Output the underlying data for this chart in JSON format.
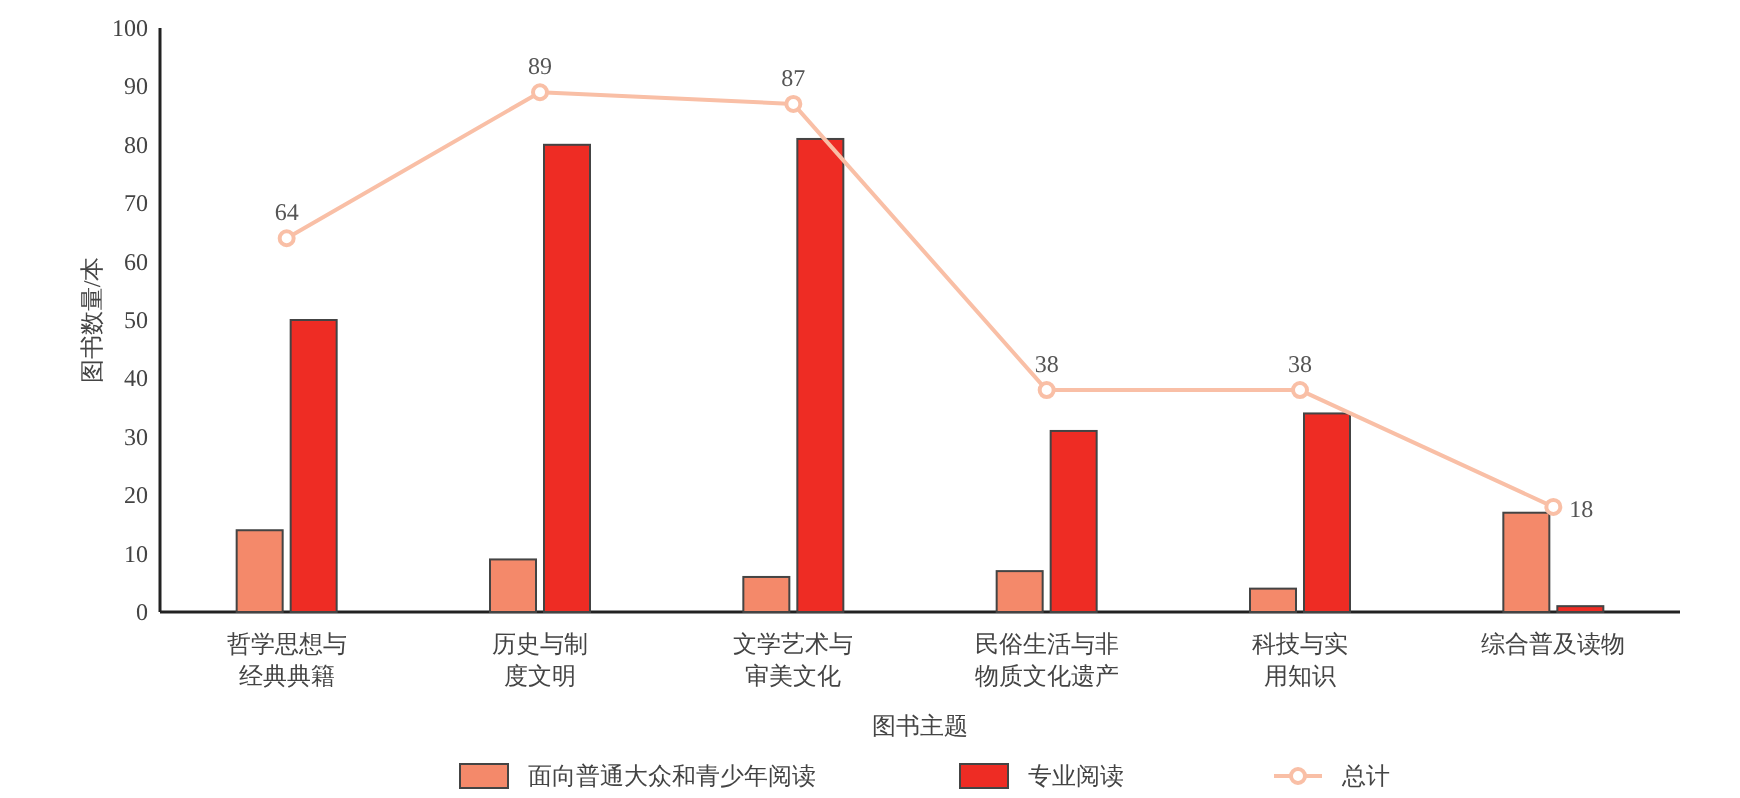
{
  "chart_data": {
    "type": "bar",
    "xlabel": "图书主题",
    "ylabel": "图书数量/本",
    "categories": [
      "哲学思想与经典典籍",
      "历史与制度文明",
      "文学艺术与审美文化",
      "民俗生活与非物质文化遗产",
      "科技与实用知识",
      "综合普及读物"
    ],
    "series": [
      {
        "name": "面向普通大众和青少年阅读",
        "color": "#f4896a",
        "values": [
          14,
          9,
          6,
          7,
          4,
          17
        ]
      },
      {
        "name": "专业阅读",
        "color": "#ee2c24",
        "values": [
          50,
          80,
          81,
          31,
          34,
          1
        ]
      },
      {
        "name": "总计",
        "type": "line",
        "color": "#f9bfa6",
        "marker": "circle",
        "values": [
          64,
          89,
          87,
          38,
          38,
          18
        ],
        "value_labels": [
          "64",
          "89",
          "87",
          "38",
          "38",
          "18"
        ]
      }
    ],
    "ylim": [
      0,
      100
    ],
    "yticks": [
      0,
      10,
      20,
      30,
      40,
      50,
      60,
      70,
      80,
      90,
      100
    ],
    "grid": false,
    "legend": "bottom"
  }
}
